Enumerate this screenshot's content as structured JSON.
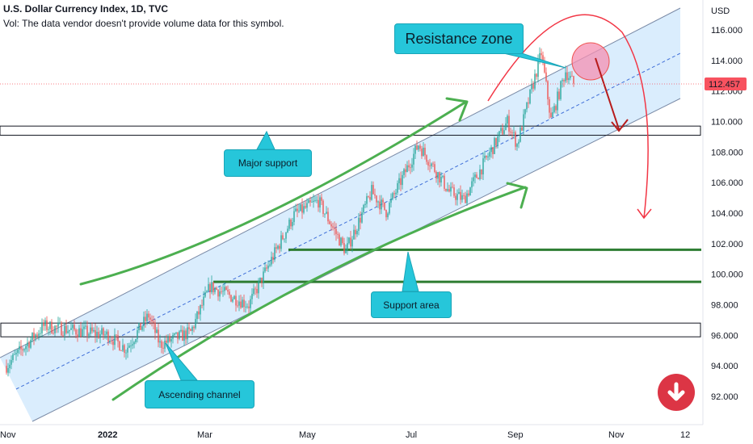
{
  "header": {
    "title": "U.S. Dollar Currency Index, 1D, TVC",
    "volume_note": "Vol: The data vendor doesn't provide volume data for this symbol."
  },
  "price_axis": {
    "currency": "USD",
    "ticks": [
      "116.000",
      "114.000",
      "112.000",
      "110.000",
      "108.000",
      "106.000",
      "104.000",
      "102.000",
      "100.000",
      "98.000",
      "96.000",
      "94.000",
      "92.000"
    ],
    "last_price": "112.457"
  },
  "time_axis": {
    "ticks": [
      "Nov",
      "2022",
      "Mar",
      "May",
      "Jul",
      "Sep",
      "Nov",
      "12"
    ]
  },
  "annotations": {
    "resistance_zone": "Resistance zone",
    "major_support": "Major support",
    "support_area": "Support area",
    "ascending_channel": "Ascending channel"
  },
  "colors": {
    "up_candle": "#26a69a",
    "down_candle": "#ef5350",
    "channel_fill": "#bbdefb",
    "callout": "#26c6da",
    "arrow_green": "#4caf50",
    "arrow_red": "#f23645",
    "last_price_bg": "#f7525f",
    "sell_badge": "#dc3545"
  },
  "icons": {
    "sell_badge": "down-arrow-circle-icon"
  },
  "chart_data": {
    "type": "candlestick",
    "x_range": [
      "Nov 2021",
      "Dec 2022"
    ],
    "ylim": [
      90.8,
      117.4
    ],
    "close_path": [
      {
        "date": "2021-11-01",
        "close": 94.0
      },
      {
        "date": "2021-11-24",
        "close": 96.6
      },
      {
        "date": "2022-01-03",
        "close": 96.0
      },
      {
        "date": "2022-01-14",
        "close": 95.1
      },
      {
        "date": "2022-01-28",
        "close": 97.3
      },
      {
        "date": "2022-02-04",
        "close": 95.4
      },
      {
        "date": "2022-02-23",
        "close": 96.2
      },
      {
        "date": "2022-03-07",
        "close": 99.2
      },
      {
        "date": "2022-03-31",
        "close": 98.0
      },
      {
        "date": "2022-04-28",
        "close": 103.9
      },
      {
        "date": "2022-05-13",
        "close": 104.8
      },
      {
        "date": "2022-05-30",
        "close": 101.5
      },
      {
        "date": "2022-06-15",
        "close": 105.4
      },
      {
        "date": "2022-06-24",
        "close": 104.1
      },
      {
        "date": "2022-07-14",
        "close": 108.5
      },
      {
        "date": "2022-08-02",
        "close": 105.4
      },
      {
        "date": "2022-08-11",
        "close": 104.9
      },
      {
        "date": "2022-09-07",
        "close": 110.0
      },
      {
        "date": "2022-09-13",
        "close": 108.5
      },
      {
        "date": "2022-09-28",
        "close": 114.5
      },
      {
        "date": "2022-10-04",
        "close": 110.1
      },
      {
        "date": "2022-10-13",
        "close": 113.3
      },
      {
        "date": "2022-10-18",
        "close": 112.457
      }
    ],
    "levels": [
      {
        "label": "Major support",
        "from": 109.1,
        "to": 109.7
      },
      {
        "label": "Support area",
        "value": 101.6
      },
      {
        "label": "Support area",
        "value": 99.5
      },
      {
        "from": 95.9,
        "to": 96.8
      }
    ],
    "last_price": 112.457,
    "grid": false,
    "legend": "none"
  }
}
